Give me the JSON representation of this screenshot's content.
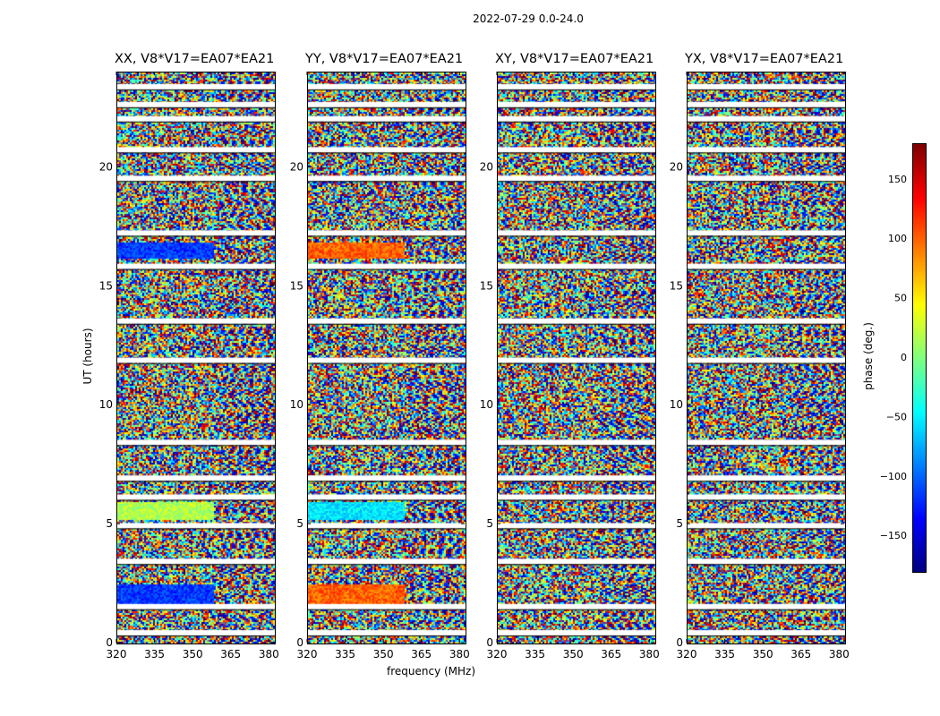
{
  "figure_title": "2022-07-29 0.0-24.0",
  "chart_data": {
    "type": "heatmap",
    "title": "2022-07-29 0.0-24.0",
    "xlabel": "frequency (MHz)",
    "ylabel": "UT (hours)",
    "xlim": [
      320,
      382
    ],
    "ylim": [
      0,
      24
    ],
    "xticks": [
      320,
      335,
      350,
      365,
      380
    ],
    "yticks": [
      0,
      5,
      10,
      15,
      20
    ],
    "colorbar": {
      "label": "phase (deg.)",
      "range": [
        -180,
        180
      ],
      "ticks": [
        150,
        100,
        50,
        0,
        -50,
        -100,
        -150
      ],
      "tick_labels": [
        "150",
        "100",
        "50",
        "0",
        "−50",
        "−100",
        "−150"
      ],
      "colormap": "jet"
    },
    "flagged_rows_hours": [
      0.45,
      1.55,
      3.45,
      4.95,
      6.15,
      6.95,
      8.45,
      11.9,
      13.55,
      15.85,
      17.25,
      19.55,
      20.75,
      22.05,
      22.65,
      23.4
    ],
    "panels": [
      {
        "name": "XX",
        "title": "XX, V8*V17=EA07*EA21"
      },
      {
        "name": "YY",
        "title": "YY, V8*V17=EA07*EA21"
      },
      {
        "name": "XY",
        "title": "XY, V8*V17=EA07*EA21"
      },
      {
        "name": "YX",
        "title": "YX, V8*V17=EA07*EA21"
      }
    ]
  }
}
